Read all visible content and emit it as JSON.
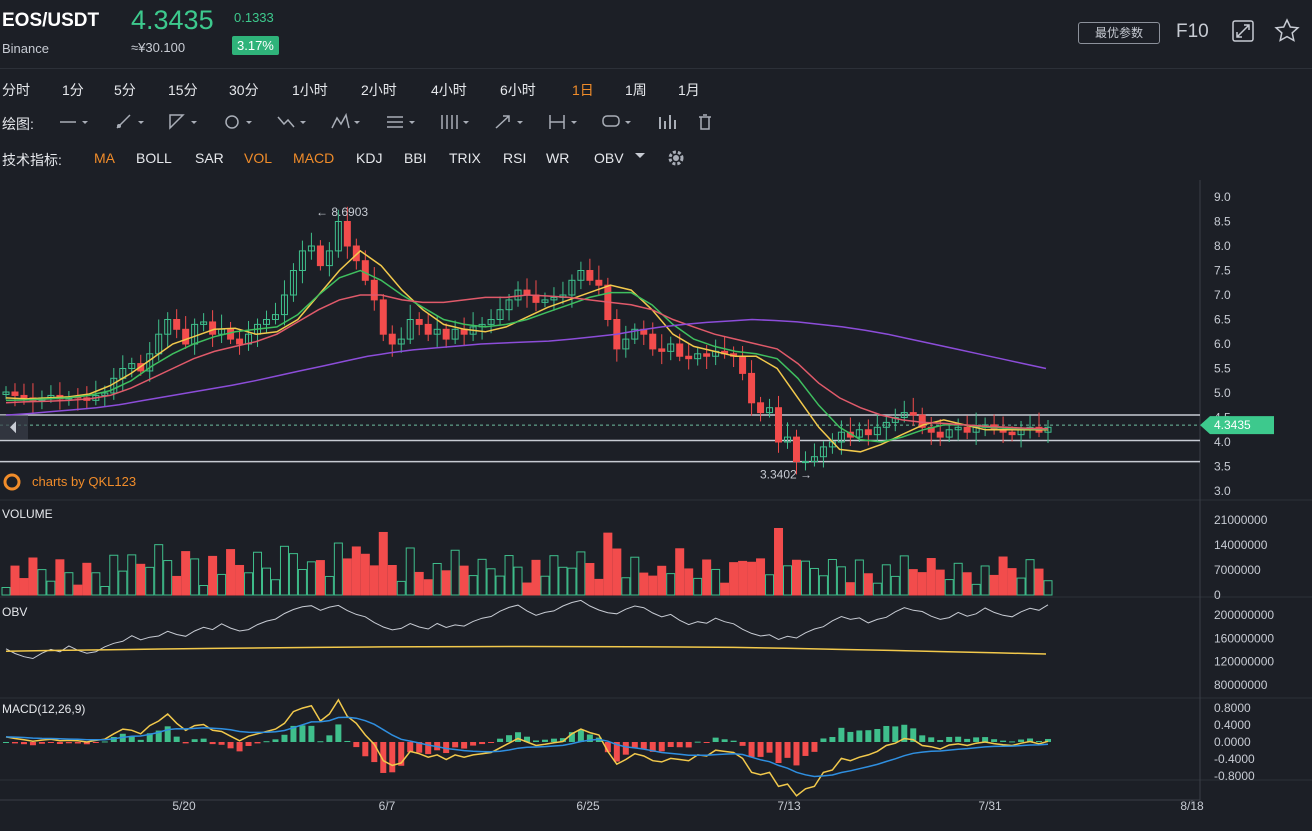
{
  "header": {
    "pair": "EOS/USDT",
    "exchange": "Binance",
    "price": "4.3435",
    "cny": "≈¥30.100",
    "change": "0.1333",
    "change_pct": "3.17%",
    "best_params": "最优参数",
    "f10": "F10"
  },
  "periods": [
    "分时",
    "1分",
    "5分",
    "15分",
    "30分",
    "1小时",
    "2小时",
    "4小时",
    "6小时",
    "1日",
    "1周",
    "1月"
  ],
  "active_period": "1日",
  "draw_label": "绘图:",
  "indicator_label": "技术指标:",
  "indicators": [
    "MA",
    "BOLL",
    "SAR",
    "VOL",
    "MACD",
    "KDJ",
    "BBI",
    "TRIX",
    "RSI",
    "WR",
    "OBV"
  ],
  "active_indicators": [
    "MA",
    "VOL",
    "MACD"
  ],
  "colors": {
    "up": "#3fbf8c",
    "down": "#f24c4c",
    "ma5": "#f2c94c",
    "ma10": "#3fbf5f",
    "ma20": "#e05a6a",
    "ma60": "#8c4dd9",
    "accent": "#f08c2a",
    "priceTag": "#3dc98d"
  },
  "chart_data": {
    "type": "candlestick",
    "x_ticks": [
      "5/20",
      "6/7",
      "6/25",
      "7/13",
      "7/31",
      "8/18"
    ],
    "price_axis": {
      "ticks": [
        "9.0",
        "8.5",
        "8.0",
        "7.5",
        "7.0",
        "6.5",
        "6.0",
        "5.5",
        "5.0",
        "4.5",
        "4.0",
        "3.5",
        "3.0"
      ],
      "ylim": [
        3.0,
        9.0
      ]
    },
    "high_label": "8.6903",
    "low_label": "3.3402",
    "last_price": "4.3435",
    "watermark": "charts by QKL123",
    "candles_close": [
      5.02,
      4.95,
      4.9,
      4.85,
      4.9,
      4.95,
      4.88,
      4.92,
      4.9,
      4.85,
      4.95,
      5.0,
      5.3,
      5.5,
      5.6,
      5.45,
      5.8,
      6.2,
      6.5,
      6.3,
      6.0,
      6.4,
      6.45,
      6.2,
      6.3,
      6.1,
      6.0,
      6.2,
      6.4,
      6.5,
      6.6,
      7.0,
      7.5,
      7.9,
      8.0,
      7.6,
      7.9,
      8.5,
      8.0,
      7.7,
      7.3,
      6.9,
      6.2,
      6.0,
      6.1,
      6.5,
      6.4,
      6.2,
      6.3,
      6.1,
      6.3,
      6.2,
      6.35,
      6.4,
      6.5,
      6.7,
      6.9,
      7.1,
      7.0,
      6.85,
      6.9,
      6.95,
      7.0,
      7.3,
      7.5,
      7.3,
      7.2,
      6.5,
      5.9,
      6.1,
      6.3,
      6.2,
      5.9,
      5.85,
      6.0,
      5.75,
      5.7,
      5.8,
      5.75,
      5.85,
      5.8,
      5.75,
      5.4,
      4.8,
      4.6,
      4.7,
      4.0,
      4.1,
      3.6,
      3.6,
      3.7,
      3.9,
      4.0,
      4.2,
      4.1,
      4.25,
      4.15,
      4.3,
      4.4,
      4.5,
      4.6,
      4.55,
      4.3,
      4.2,
      4.1,
      4.25,
      4.3,
      4.2,
      4.3,
      4.35,
      4.25,
      4.2,
      4.15,
      4.25,
      4.3,
      4.2,
      4.3
    ],
    "ma_lines": [
      {
        "name": "MA5",
        "points": [
          4.9,
          4.88,
          4.9,
          4.92,
          4.98,
          5.15,
          5.4,
          5.7,
          6.0,
          6.15,
          6.3,
          6.32,
          6.2,
          6.25,
          6.5,
          7.0,
          7.5,
          7.9,
          7.6,
          7.1,
          6.7,
          6.4,
          6.3,
          6.25,
          6.35,
          6.55,
          6.75,
          6.9,
          7.05,
          7.2,
          7.1,
          6.7,
          6.2,
          5.95,
          5.85,
          5.75,
          5.75,
          5.5,
          4.9,
          4.3,
          3.85,
          3.8,
          3.95,
          4.15,
          4.35,
          4.45,
          4.35,
          4.25,
          4.25,
          4.25,
          4.25
        ]
      },
      {
        "name": "MA10",
        "points": [
          4.85,
          4.86,
          4.88,
          4.9,
          4.95,
          5.05,
          5.25,
          5.55,
          5.8,
          6.0,
          6.15,
          6.25,
          6.3,
          6.35,
          6.6,
          7.0,
          7.35,
          7.5,
          7.3,
          7.0,
          6.75,
          6.5,
          6.4,
          6.35,
          6.4,
          6.5,
          6.65,
          6.8,
          6.95,
          7.05,
          7.05,
          6.8,
          6.4,
          6.1,
          5.95,
          5.85,
          5.8,
          5.7,
          5.3,
          4.75,
          4.3,
          4.05,
          4.0,
          4.1,
          4.25,
          4.35,
          4.35,
          4.3,
          4.28,
          4.27,
          4.26
        ]
      },
      {
        "name": "MA20",
        "points": [
          4.8,
          4.82,
          4.83,
          4.85,
          4.88,
          4.95,
          5.1,
          5.3,
          5.5,
          5.7,
          5.85,
          5.95,
          6.05,
          6.2,
          6.45,
          6.7,
          6.9,
          7.0,
          7.0,
          6.9,
          6.85,
          6.85,
          6.9,
          6.95,
          6.95,
          7.0,
          6.98,
          6.95,
          6.9,
          6.85,
          6.8,
          6.7,
          6.5,
          6.35,
          6.2,
          6.1,
          6.0,
          5.9,
          5.6,
          5.2,
          4.9,
          4.7,
          4.55,
          4.45,
          4.4,
          4.38,
          4.35,
          4.32,
          4.3,
          4.28,
          4.27
        ]
      },
      {
        "name": "MA60",
        "points": [
          4.55,
          4.58,
          4.62,
          4.66,
          4.7,
          4.76,
          4.84,
          4.92,
          5.0,
          5.08,
          5.16,
          5.25,
          5.35,
          5.45,
          5.55,
          5.65,
          5.75,
          5.82,
          5.88,
          5.92,
          5.96,
          6.0,
          6.02,
          6.04,
          6.06,
          6.1,
          6.15,
          6.2,
          6.28,
          6.35,
          6.4,
          6.44,
          6.47,
          6.5,
          6.48,
          6.45,
          6.4,
          6.35,
          6.28,
          6.2,
          6.1,
          6.0,
          5.9,
          5.8,
          5.7,
          5.6,
          5.5
        ]
      }
    ],
    "volume": {
      "label": "VOLUME",
      "ticks": [
        "21000000",
        "14000000",
        "7000000",
        "0"
      ]
    },
    "obv": {
      "label": "OBV",
      "ticks": [
        "200000000",
        "160000000",
        "120000000",
        "80000000"
      ]
    },
    "macd": {
      "label": "MACD(12,26,9)",
      "ticks": [
        "0.8000",
        "0.4000",
        "0.0000",
        "-0.4000",
        "-0.8000"
      ]
    }
  }
}
